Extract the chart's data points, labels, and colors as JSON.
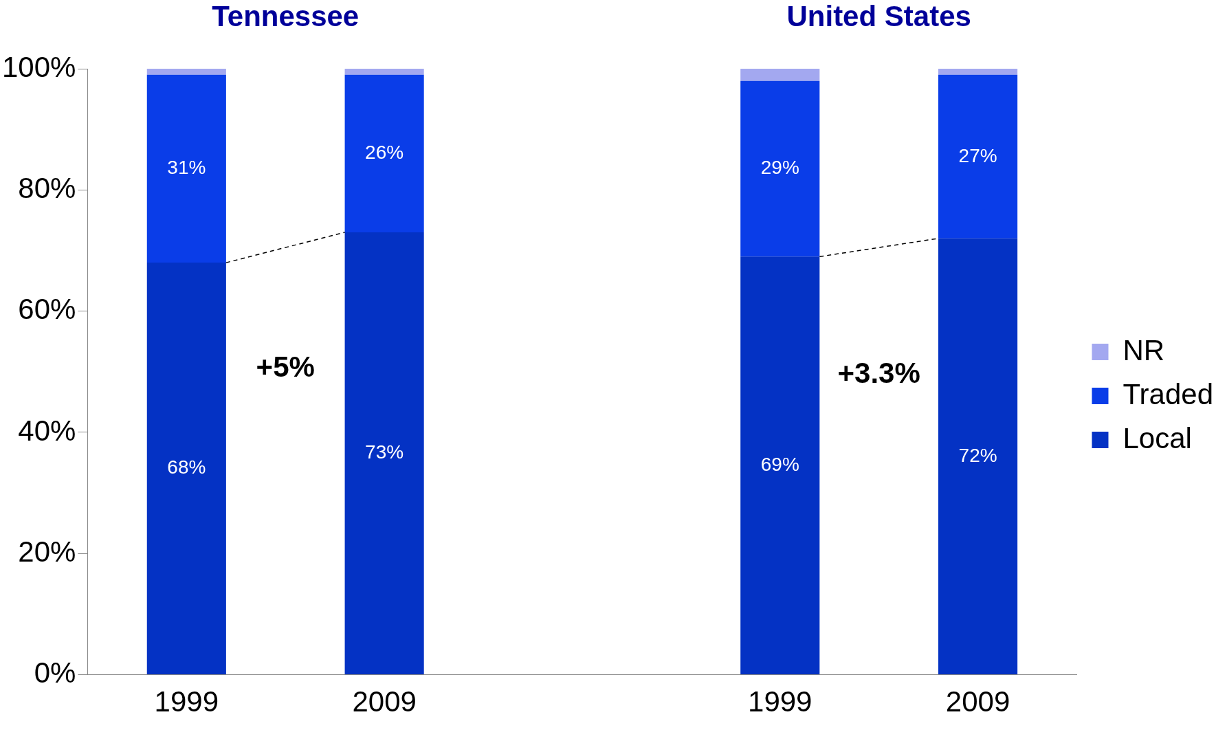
{
  "chart_data": {
    "type": "bar",
    "stacked": true,
    "categories": [
      "1999",
      "2009",
      null,
      "1999",
      "2009"
    ],
    "series": [
      {
        "name": "Local",
        "color": "#0432c4",
        "values": [
          68,
          73,
          null,
          69,
          72
        ],
        "value_labels": [
          "68%",
          "73%",
          null,
          "69%",
          "72%"
        ]
      },
      {
        "name": "Traded",
        "color": "#0a3de8",
        "values": [
          31,
          26,
          null,
          29,
          27
        ],
        "value_labels": [
          "31%",
          "26%",
          null,
          "29%",
          "27%"
        ]
      },
      {
        "name": "NR",
        "color": "#a3a8f0",
        "values": [
          1,
          1,
          null,
          2,
          1
        ]
      }
    ],
    "ylim": [
      0,
      100
    ],
    "yticks": [
      {
        "value": 0,
        "label": "0%"
      },
      {
        "value": 20,
        "label": "20%"
      },
      {
        "value": 40,
        "label": "40%"
      },
      {
        "value": 60,
        "label": "60%"
      },
      {
        "value": 80,
        "label": "80%"
      },
      {
        "value": 100,
        "label": "100%"
      }
    ],
    "grid": false,
    "legend": "right",
    "annotations": [
      "Tennessee",
      "United States",
      "+5%",
      "+3.3%"
    ]
  }
}
